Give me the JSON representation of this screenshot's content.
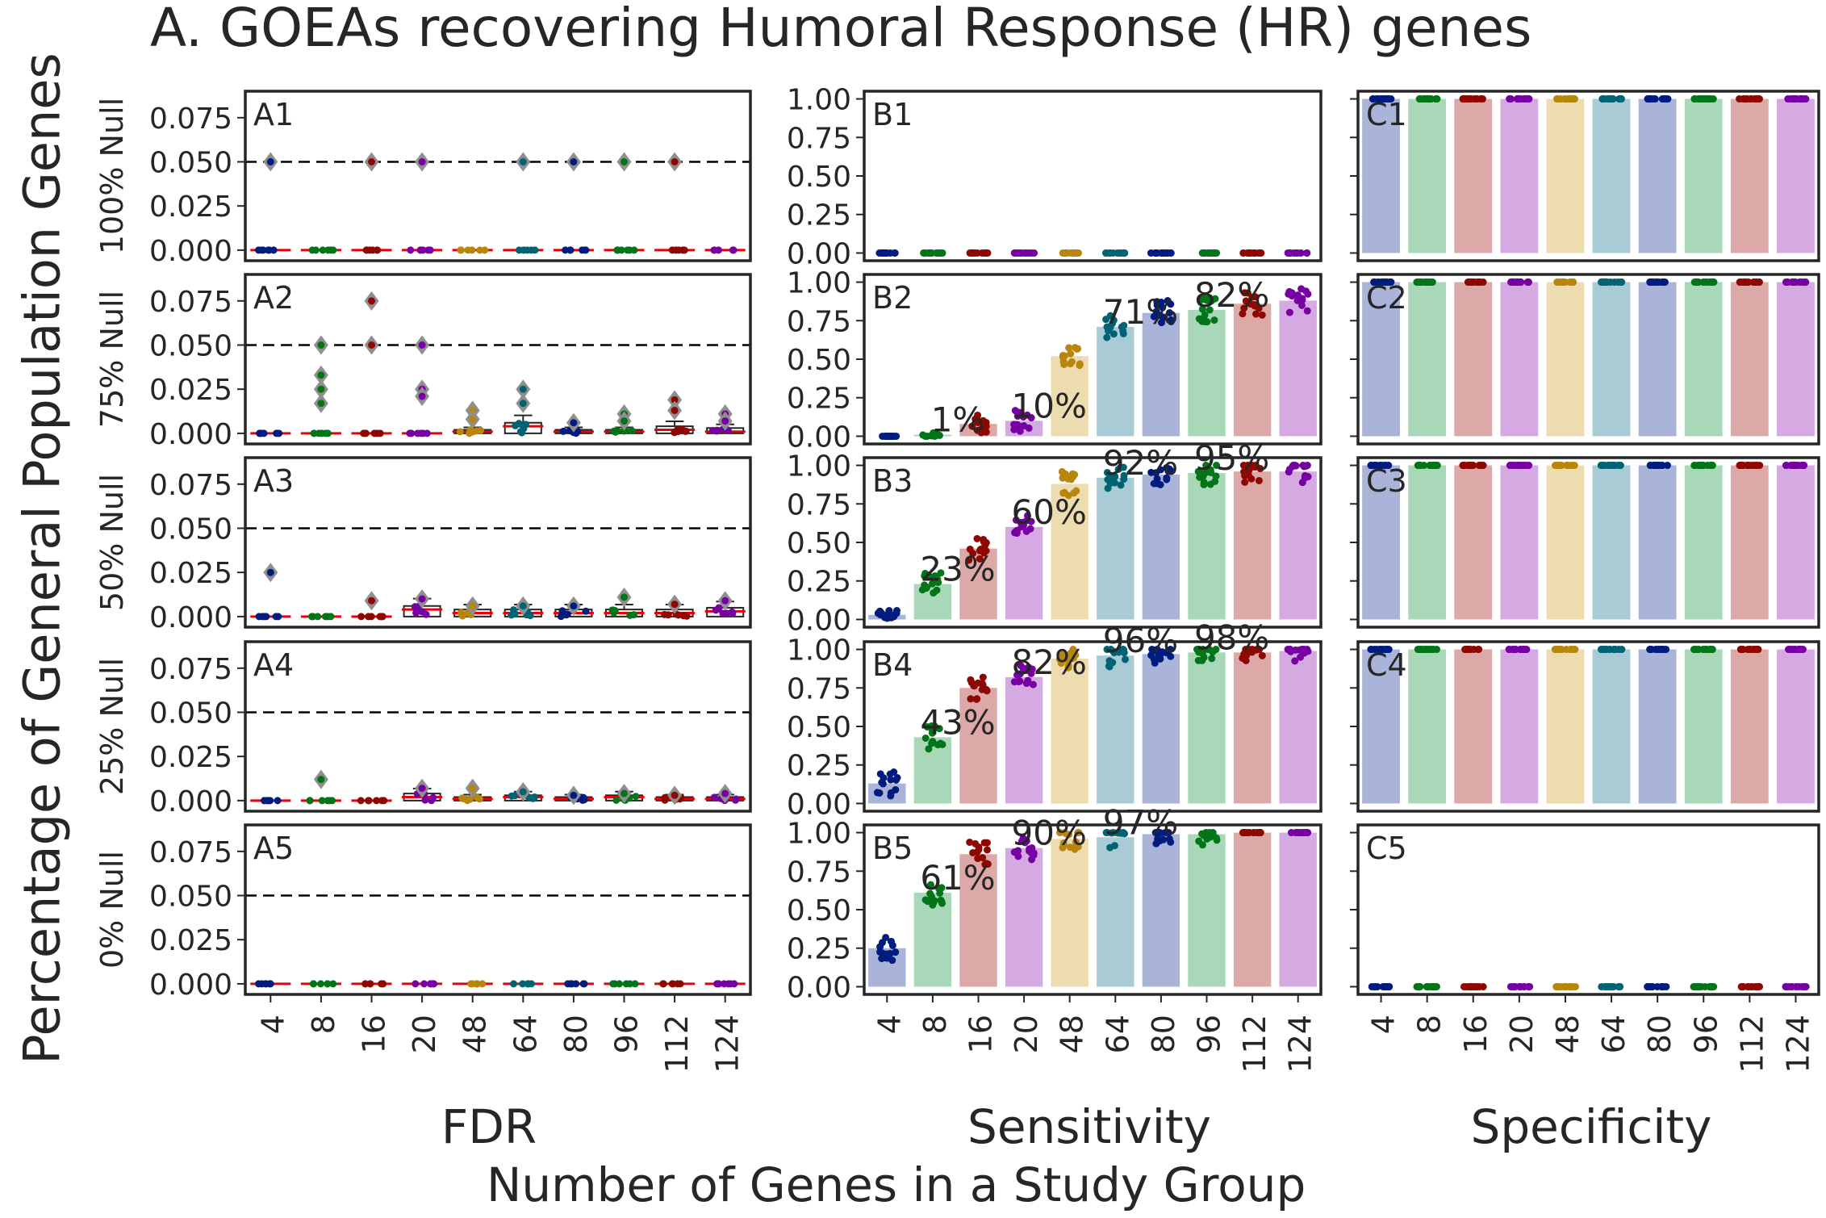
{
  "title": "A. GOEAs recovering Humoral Response (HR) genes",
  "ylabel": "Percentage of General Population Genes",
  "xlabel": "Number of Genes in a Study Group",
  "colors": {
    "series": [
      "#001c7f",
      "#017517",
      "#8c0800",
      "#7600a1",
      "#b8860b",
      "#006374"
    ],
    "bars": [
      "#aab3d8",
      "#a9d8b8",
      "#dca9a8",
      "#d5a9e2",
      "#ecdcb0",
      "#a9cbd6"
    ],
    "axis": "#262626",
    "threshold": "#000000",
    "median": "#e8000b",
    "diamond": "#8f8f8f"
  },
  "chart_data": [
    {
      "type": "box",
      "column_label": "FDR",
      "categories": [
        "4",
        "8",
        "16",
        "20",
        "48",
        "64",
        "80",
        "96",
        "112",
        "124"
      ],
      "yticks": [
        "0.000",
        "0.025",
        "0.050",
        "0.075"
      ],
      "ylim": [
        -0.006,
        0.09
      ],
      "threshold": 0.05,
      "panels": [
        {
          "label": "A1",
          "row_label": "100% Null",
          "medians": [
            0,
            0,
            0,
            0,
            0,
            0,
            0,
            0,
            0,
            0
          ],
          "box_q3": [
            0,
            0,
            0,
            0,
            0,
            0,
            0,
            0,
            0,
            0
          ],
          "outliers": [
            [
              0.05
            ],
            [],
            [
              0.05
            ],
            [
              0.05
            ],
            [],
            [
              0.05
            ],
            [
              0.05
            ],
            [
              0.05
            ],
            [
              0.05
            ],
            []
          ]
        },
        {
          "label": "A2",
          "row_label": "75% Null",
          "medians": [
            0,
            0,
            0,
            0,
            0.001,
            0.004,
            0.001,
            0.001,
            0.002,
            0.001
          ],
          "box_q3": [
            0,
            0,
            0,
            0,
            0.002,
            0.006,
            0.002,
            0.002,
            0.004,
            0.003
          ],
          "outliers": [
            [],
            [
              0.05,
              0.033,
              0.025,
              0.017
            ],
            [
              0.075,
              0.05
            ],
            [
              0.05,
              0.025,
              0.021
            ],
            [
              0.013,
              0.008
            ],
            [
              0.025,
              0.017
            ],
            [
              0.006
            ],
            [
              0.011,
              0.007
            ],
            [
              0.019,
              0.013
            ],
            [
              0.011,
              0.007
            ]
          ]
        },
        {
          "label": "A3",
          "row_label": "50% Null",
          "medians": [
            0,
            0,
            0,
            0.004,
            0.002,
            0.002,
            0.002,
            0.002,
            0.002,
            0.003
          ],
          "box_q3": [
            0,
            0,
            0,
            0.006,
            0.004,
            0.004,
            0.004,
            0.004,
            0.004,
            0.005
          ],
          "outliers": [
            [
              0.025
            ],
            [],
            [
              0.009
            ],
            [
              0.01
            ],
            [
              0.006
            ],
            [
              0.006
            ],
            [
              0.006
            ],
            [
              0.011
            ],
            [
              0.007
            ],
            [
              0.009
            ]
          ]
        },
        {
          "label": "A4",
          "row_label": "25% Null",
          "medians": [
            0,
            0,
            0,
            0.002,
            0.001,
            0.002,
            0.001,
            0.002,
            0.001,
            0.001
          ],
          "box_q3": [
            0,
            0,
            0,
            0.004,
            0.002,
            0.003,
            0.002,
            0.003,
            0.002,
            0.002
          ],
          "outliers": [
            [],
            [
              0.012
            ],
            [],
            [
              0.007
            ],
            [
              0.007
            ],
            [
              0.005
            ],
            [
              0.003
            ],
            [
              0.004
            ],
            [
              0.003
            ],
            [
              0.004
            ]
          ]
        },
        {
          "label": "A5",
          "row_label": "0% Null",
          "medians": [
            0,
            0,
            0,
            0,
            0,
            0,
            0,
            0,
            0,
            0
          ],
          "box_q3": [
            0,
            0,
            0,
            0,
            0,
            0,
            0,
            0,
            0,
            0
          ],
          "outliers": [
            [],
            [],
            [],
            [],
            [],
            [],
            [],
            [],
            [],
            []
          ]
        }
      ]
    },
    {
      "type": "bar",
      "column_label": "Sensitivity",
      "categories": [
        "4",
        "8",
        "16",
        "20",
        "48",
        "64",
        "80",
        "96",
        "112",
        "124"
      ],
      "yticks": [
        "0.00",
        "0.25",
        "0.50",
        "0.75",
        "1.00"
      ],
      "ylim": [
        -0.05,
        1.05
      ],
      "panels": [
        {
          "label": "B1",
          "values": [
            0,
            0,
            0,
            0,
            0,
            0,
            0,
            0,
            0,
            0
          ],
          "annotations": []
        },
        {
          "label": "B2",
          "values": [
            0.0,
            0.01,
            0.08,
            0.1,
            0.52,
            0.71,
            0.8,
            0.82,
            0.86,
            0.88
          ],
          "annotations": [
            {
              "cat": 1,
              "text": "1%"
            },
            {
              "cat": 3,
              "text": "10%"
            },
            {
              "cat": 5,
              "text": "71%"
            },
            {
              "cat": 7,
              "text": "82%"
            }
          ]
        },
        {
          "label": "B3",
          "values": [
            0.03,
            0.23,
            0.46,
            0.6,
            0.88,
            0.92,
            0.94,
            0.95,
            0.96,
            0.96
          ],
          "annotations": [
            {
              "cat": 1,
              "text": "23%"
            },
            {
              "cat": 3,
              "text": "60%"
            },
            {
              "cat": 5,
              "text": "92%"
            },
            {
              "cat": 7,
              "text": "95%"
            }
          ]
        },
        {
          "label": "B4",
          "values": [
            0.13,
            0.43,
            0.75,
            0.82,
            0.94,
            0.96,
            0.97,
            0.98,
            0.98,
            0.99
          ],
          "annotations": [
            {
              "cat": 1,
              "text": "43%"
            },
            {
              "cat": 3,
              "text": "82%"
            },
            {
              "cat": 5,
              "text": "96%"
            },
            {
              "cat": 7,
              "text": "98%"
            }
          ]
        },
        {
          "label": "B5",
          "values": [
            0.25,
            0.61,
            0.86,
            0.9,
            0.96,
            0.97,
            0.99,
            0.99,
            1.0,
            1.0
          ],
          "annotations": [
            {
              "cat": 1,
              "text": "61%"
            },
            {
              "cat": 3,
              "text": "90%"
            },
            {
              "cat": 5,
              "text": "97%"
            }
          ]
        }
      ]
    },
    {
      "type": "bar",
      "column_label": "Specificity",
      "categories": [
        "4",
        "8",
        "16",
        "20",
        "48",
        "64",
        "80",
        "96",
        "112",
        "124"
      ],
      "ylim": [
        -0.05,
        1.05
      ],
      "panels": [
        {
          "label": "C1",
          "values": [
            1,
            1,
            1,
            1,
            1,
            1,
            1,
            1,
            1,
            1
          ]
        },
        {
          "label": "C2",
          "values": [
            1,
            1,
            1,
            1,
            1,
            1,
            1,
            1,
            1,
            1
          ]
        },
        {
          "label": "C3",
          "values": [
            1,
            1,
            1,
            1,
            1,
            1,
            1,
            1,
            1,
            1
          ]
        },
        {
          "label": "C4",
          "values": [
            1,
            1,
            1,
            1,
            1,
            1,
            1,
            1,
            1,
            1
          ]
        },
        {
          "label": "C5",
          "values": [
            0,
            0,
            0,
            0,
            0,
            0,
            0,
            0,
            0,
            0
          ]
        }
      ]
    }
  ]
}
